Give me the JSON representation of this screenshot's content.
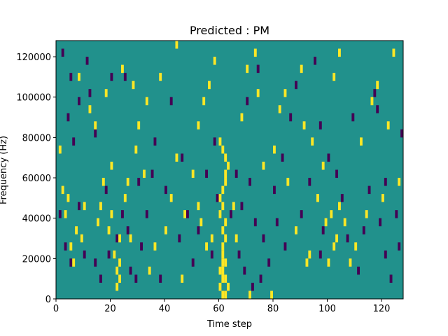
{
  "chart_data": {
    "type": "heatmap",
    "title": "Predicted : PM",
    "xlabel": "Time step",
    "ylabel": "Frequency (Hz)",
    "xlim": [
      0,
      128
    ],
    "ylim": [
      0,
      128000
    ],
    "grid": false,
    "legend": "none",
    "x_ticks": [
      0,
      20,
      40,
      60,
      80,
      100,
      120
    ],
    "y_ticks": [
      0,
      20000,
      40000,
      60000,
      80000,
      100000,
      120000
    ],
    "y_tick_labels": [
      "0",
      "20000",
      "40000",
      "60000",
      "80000",
      "100000",
      "120000"
    ],
    "colors": {
      "background": "#21918c",
      "high": "#fde725",
      "low": "#440154"
    },
    "cell": {
      "time_width": 1,
      "freq_height": 4000
    },
    "cells_high": [
      [
        61,
        0
      ],
      [
        62,
        0
      ],
      [
        63,
        4000
      ],
      [
        60,
        4000
      ],
      [
        61,
        8000
      ],
      [
        62,
        8000
      ],
      [
        60,
        12000
      ],
      [
        61,
        12000
      ],
      [
        62,
        16000
      ],
      [
        61,
        16000
      ],
      [
        61,
        20000
      ],
      [
        61,
        24000
      ],
      [
        62,
        28000
      ],
      [
        61,
        32000
      ],
      [
        62,
        36000
      ],
      [
        60,
        40000
      ],
      [
        61,
        44000
      ],
      [
        60,
        48000
      ],
      [
        61,
        52000
      ],
      [
        62,
        56000
      ],
      [
        62,
        60000
      ],
      [
        63,
        64000
      ],
      [
        62,
        68000
      ],
      [
        61,
        72000
      ],
      [
        60,
        76000
      ],
      [
        22,
        4000
      ],
      [
        23,
        8000
      ],
      [
        22,
        12000
      ],
      [
        23,
        16000
      ],
      [
        21,
        20000
      ],
      [
        23,
        28000
      ],
      [
        71,
        0
      ],
      [
        79,
        0
      ],
      [
        100,
        16000
      ],
      [
        102,
        24000
      ],
      [
        103,
        28000
      ],
      [
        99,
        36000
      ],
      [
        101,
        40000
      ],
      [
        104,
        44000
      ],
      [
        92,
        16000
      ],
      [
        93,
        20000
      ],
      [
        55,
        24000
      ],
      [
        57,
        28000
      ],
      [
        53,
        36000
      ],
      [
        52,
        44000
      ],
      [
        6,
        16000
      ],
      [
        3,
        40000
      ],
      [
        4,
        48000
      ],
      [
        10,
        44000
      ],
      [
        2,
        52000
      ],
      [
        5,
        24000
      ],
      [
        15,
        36000
      ],
      [
        16,
        44000
      ],
      [
        19,
        32000
      ],
      [
        20,
        40000
      ],
      [
        17,
        56000
      ],
      [
        20,
        64000
      ],
      [
        25,
        48000
      ],
      [
        26,
        56000
      ],
      [
        27,
        28000
      ],
      [
        29,
        72000
      ],
      [
        30,
        84000
      ],
      [
        32,
        60000
      ],
      [
        34,
        12000
      ],
      [
        36,
        24000
      ],
      [
        40,
        32000
      ],
      [
        42,
        48000
      ],
      [
        44,
        68000
      ],
      [
        46,
        8000
      ],
      [
        47,
        40000
      ],
      [
        50,
        60000
      ],
      [
        52,
        84000
      ],
      [
        54,
        96000
      ],
      [
        56,
        104000
      ],
      [
        58,
        116000
      ],
      [
        65,
        44000
      ],
      [
        66,
        28000
      ],
      [
        68,
        88000
      ],
      [
        70,
        112000
      ],
      [
        73,
        120000
      ],
      [
        74,
        100000
      ],
      [
        76,
        64000
      ],
      [
        80,
        72000
      ],
      [
        82,
        92000
      ],
      [
        84,
        100000
      ],
      [
        85,
        56000
      ],
      [
        88,
        32000
      ],
      [
        90,
        112000
      ],
      [
        91,
        84000
      ],
      [
        94,
        76000
      ],
      [
        96,
        48000
      ],
      [
        98,
        64000
      ],
      [
        102,
        108000
      ],
      [
        104,
        120000
      ],
      [
        106,
        36000
      ],
      [
        108,
        16000
      ],
      [
        110,
        24000
      ],
      [
        112,
        76000
      ],
      [
        114,
        40000
      ],
      [
        116,
        96000
      ],
      [
        118,
        104000
      ],
      [
        120,
        48000
      ],
      [
        122,
        84000
      ],
      [
        124,
        120000
      ],
      [
        126,
        56000
      ],
      [
        8,
        108000
      ],
      [
        12,
        92000
      ],
      [
        14,
        84000
      ],
      [
        18,
        100000
      ],
      [
        24,
        112000
      ],
      [
        28,
        104000
      ],
      [
        33,
        96000
      ],
      [
        38,
        108000
      ],
      [
        44,
        124000
      ],
      [
        1,
        72000
      ],
      [
        7,
        32000
      ],
      [
        9,
        28000
      ]
    ],
    "cells_low": [
      [
        2,
        120000
      ],
      [
        5,
        108000
      ],
      [
        8,
        96000
      ],
      [
        12,
        100000
      ],
      [
        14,
        80000
      ],
      [
        4,
        88000
      ],
      [
        3,
        24000
      ],
      [
        5,
        16000
      ],
      [
        8,
        44000
      ],
      [
        10,
        20000
      ],
      [
        14,
        16000
      ],
      [
        16,
        8000
      ],
      [
        18,
        52000
      ],
      [
        19,
        20000
      ],
      [
        24,
        40000
      ],
      [
        26,
        32000
      ],
      [
        27,
        12000
      ],
      [
        29,
        8000
      ],
      [
        30,
        56000
      ],
      [
        31,
        24000
      ],
      [
        33,
        40000
      ],
      [
        35,
        60000
      ],
      [
        36,
        76000
      ],
      [
        38,
        8000
      ],
      [
        40,
        52000
      ],
      [
        42,
        96000
      ],
      [
        44,
        124000
      ],
      [
        46,
        68000
      ],
      [
        48,
        40000
      ],
      [
        52,
        32000
      ],
      [
        55,
        60000
      ],
      [
        57,
        20000
      ],
      [
        59,
        48000
      ],
      [
        64,
        40000
      ],
      [
        66,
        60000
      ],
      [
        68,
        44000
      ],
      [
        69,
        12000
      ],
      [
        71,
        56000
      ],
      [
        72,
        4000
      ],
      [
        73,
        36000
      ],
      [
        75,
        8000
      ],
      [
        76,
        28000
      ],
      [
        78,
        16000
      ],
      [
        80,
        52000
      ],
      [
        81,
        36000
      ],
      [
        83,
        68000
      ],
      [
        84,
        24000
      ],
      [
        86,
        88000
      ],
      [
        88,
        104000
      ],
      [
        90,
        40000
      ],
      [
        93,
        56000
      ],
      [
        95,
        116000
      ],
      [
        97,
        20000
      ],
      [
        98,
        32000
      ],
      [
        100,
        68000
      ],
      [
        105,
        48000
      ],
      [
        107,
        28000
      ],
      [
        109,
        88000
      ],
      [
        111,
        12000
      ],
      [
        113,
        32000
      ],
      [
        115,
        52000
      ],
      [
        117,
        100000
      ],
      [
        119,
        36000
      ],
      [
        121,
        20000
      ],
      [
        123,
        8000
      ],
      [
        125,
        40000
      ],
      [
        127,
        80000
      ],
      [
        126,
        24000
      ],
      [
        121,
        56000
      ],
      [
        118,
        92000
      ],
      [
        103,
        60000
      ],
      [
        97,
        84000
      ],
      [
        74,
        112000
      ],
      [
        70,
        96000
      ],
      [
        67,
        20000
      ],
      [
        58,
        76000
      ],
      [
        50,
        16000
      ],
      [
        45,
        28000
      ],
      [
        20,
        108000
      ],
      [
        22,
        28000
      ],
      [
        25,
        108000
      ],
      [
        6,
        76000
      ],
      [
        1,
        40000
      ],
      [
        11,
        116000
      ]
    ]
  }
}
